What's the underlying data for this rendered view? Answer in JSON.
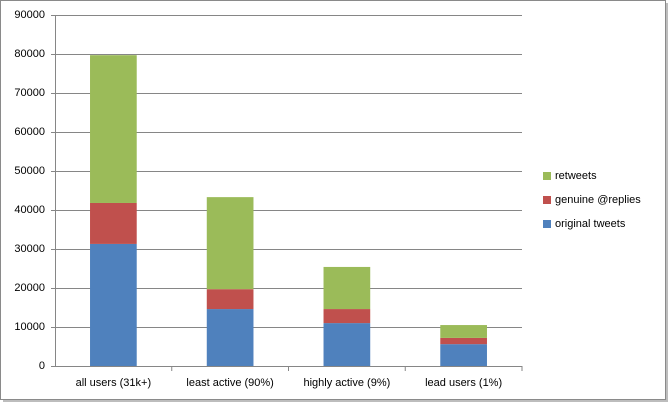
{
  "chart_data": {
    "type": "stacked-bar",
    "categories": [
      "all users (31k+)",
      "least active (90%)",
      "highly active (9%)",
      "lead users (1%)"
    ],
    "series": [
      {
        "name": "original tweets",
        "color": "#4f81bd",
        "values": [
          31300,
          14600,
          11000,
          5600
        ]
      },
      {
        "name": "genuine @replies",
        "color": "#c0504d",
        "values": [
          10500,
          5100,
          3600,
          1600
        ]
      },
      {
        "name": "retweets",
        "color": "#9bbb59",
        "values": [
          37900,
          23600,
          10800,
          3300
        ]
      }
    ],
    "ylim": [
      0,
      90000
    ],
    "yticks": [
      0,
      10000,
      20000,
      30000,
      40000,
      50000,
      60000,
      70000,
      80000,
      90000
    ],
    "grid": true,
    "legend": "right"
  }
}
